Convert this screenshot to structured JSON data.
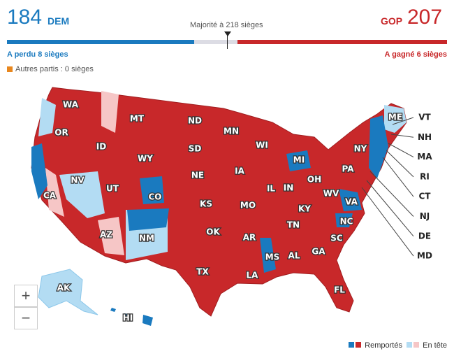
{
  "header": {
    "dem_seats": "184",
    "dem_label": "DEM",
    "majority": "Majorité à 218 sièges",
    "gop_label": "GOP",
    "gop_seats": "207",
    "dem_change": "A perdu 8 sièges",
    "gop_change": "A gagné 6 sièges",
    "others": "Autres partis : 0 sièges"
  },
  "map": {
    "state_labels": [
      "WA",
      "OR",
      "ID",
      "MT",
      "ND",
      "SD",
      "WY",
      "MN",
      "WI",
      "MI",
      "NY",
      "ME",
      "NE",
      "IA",
      "IL",
      "IN",
      "OH",
      "PA",
      "NV",
      "UT",
      "CO",
      "KS",
      "MO",
      "KY",
      "WV",
      "VA",
      "CA",
      "AZ",
      "NM",
      "OK",
      "AR",
      "TN",
      "NC",
      "SC",
      "MS",
      "AL",
      "GA",
      "TX",
      "LA",
      "FL",
      "AK",
      "HI"
    ],
    "callout_labels": [
      "VT",
      "NH",
      "MA",
      "RI",
      "CT",
      "NJ",
      "DE",
      "MD"
    ]
  },
  "zoom": {
    "in": "+",
    "out": "−"
  },
  "legend": {
    "won": "Remportés",
    "leading": "En tête"
  }
}
